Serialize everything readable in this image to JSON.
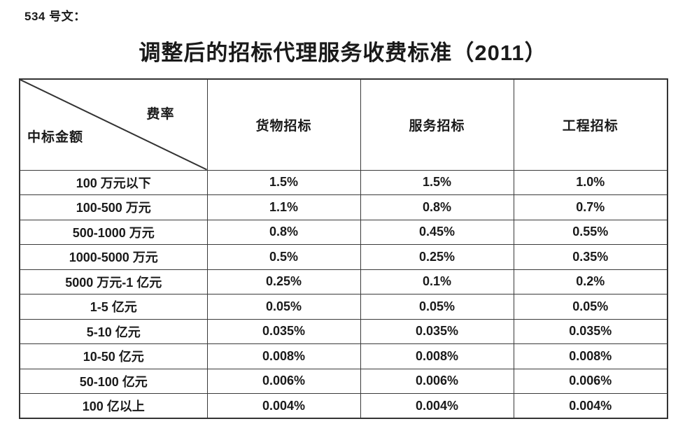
{
  "doc": {
    "ref_label": "534 号文：",
    "title": "调整后的招标代理服务收费标准（2011）"
  },
  "table": {
    "corner": {
      "top_right_label": "费率",
      "bottom_left_label": "中标金额"
    },
    "columns": [
      "货物招标",
      "服务招标",
      "工程招标"
    ],
    "rows": [
      {
        "amount": "100 万元以下",
        "goods": "1.5%",
        "service": "1.5%",
        "engineering": "1.0%"
      },
      {
        "amount": "100-500 万元",
        "goods": "1.1%",
        "service": "0.8%",
        "engineering": "0.7%"
      },
      {
        "amount": "500-1000 万元",
        "goods": "0.8%",
        "service": "0.45%",
        "engineering": "0.55%"
      },
      {
        "amount": "1000-5000 万元",
        "goods": "0.5%",
        "service": "0.25%",
        "engineering": "0.35%"
      },
      {
        "amount": "5000 万元-1 亿元",
        "goods": "0.25%",
        "service": "0.1%",
        "engineering": "0.2%"
      },
      {
        "amount": "1-5 亿元",
        "goods": "0.05%",
        "service": "0.05%",
        "engineering": "0.05%"
      },
      {
        "amount": "5-10 亿元",
        "goods": "0.035%",
        "service": "0.035%",
        "engineering": "0.035%"
      },
      {
        "amount": "10-50 亿元",
        "goods": "0.008%",
        "service": "0.008%",
        "engineering": "0.008%"
      },
      {
        "amount": "50-100 亿元",
        "goods": "0.006%",
        "service": "0.006%",
        "engineering": "0.006%"
      },
      {
        "amount": "100 亿以上",
        "goods": "0.004%",
        "service": "0.004%",
        "engineering": "0.004%"
      }
    ],
    "line_color": "#333333"
  }
}
